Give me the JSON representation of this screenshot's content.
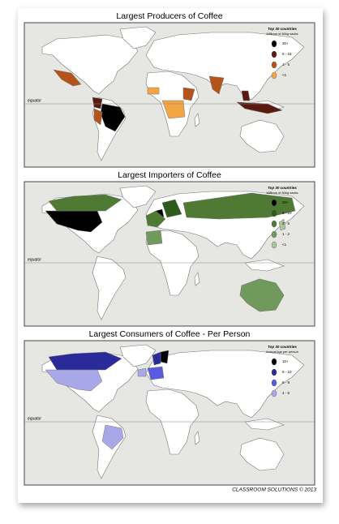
{
  "maps": [
    {
      "title": "Largest Producers of Coffee",
      "equator": "equator",
      "legend": {
        "title": "Top 30 countries",
        "subtitle": "Millions of 60kg sacks",
        "items": [
          {
            "label": "30+",
            "color": "#000000"
          },
          {
            "label": "5 - 15",
            "color": "#5a1a10"
          },
          {
            "label": "1 - 5",
            "color": "#b5541a"
          },
          {
            "label": "<1",
            "color": "#f3a443"
          }
        ]
      }
    },
    {
      "title": "Largest Importers of Coffee",
      "equator": "equator",
      "legend": {
        "title": "Top 30 countries",
        "subtitle": "Millions of 60kg sacks",
        "items": [
          {
            "label": "20+",
            "color": "#000000"
          },
          {
            "label": "5 - 10",
            "color": "#2e5a1e"
          },
          {
            "label": "2 - 5",
            "color": "#4e7a34"
          },
          {
            "label": "1 - 2",
            "color": "#6f9a5c"
          },
          {
            "label": "<1",
            "color": "#a9c39a"
          }
        ]
      }
    },
    {
      "title": "Largest Consumers of Coffee - Per Person",
      "equator": "equator",
      "legend": {
        "title": "Top 30 countries",
        "subtitle": "Annual kgs per person",
        "items": [
          {
            "label": "10+",
            "color": "#000000"
          },
          {
            "label": "8 - 10",
            "color": "#2a2a9a"
          },
          {
            "label": "6 - 8",
            "color": "#5a5ae0"
          },
          {
            "label": "4 - 6",
            "color": "#a8a8e8"
          }
        ]
      }
    }
  ],
  "footer": "CLASSROOM SOLUTIONS © 2013"
}
